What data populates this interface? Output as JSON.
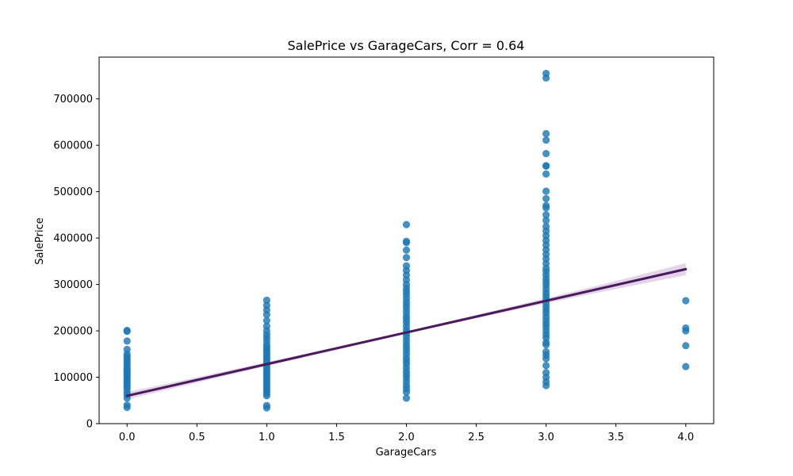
{
  "chart_data": {
    "type": "scatter",
    "title": "SalePrice vs GarageCars, Corr = 0.64",
    "xlabel": "GarageCars",
    "ylabel": "SalePrice",
    "xlim": [
      -0.2,
      4.2
    ],
    "ylim": [
      0,
      790000
    ],
    "xticks": [
      "0.0",
      "0.5",
      "1.0",
      "1.5",
      "2.0",
      "2.5",
      "3.0",
      "3.5",
      "4.0"
    ],
    "xtick_values": [
      0,
      0.5,
      1,
      1.5,
      2,
      2.5,
      3,
      3.5,
      4
    ],
    "yticks": [
      "0",
      "100000",
      "200000",
      "300000",
      "400000",
      "500000",
      "600000",
      "700000"
    ],
    "ytick_values": [
      0,
      100000,
      200000,
      300000,
      400000,
      500000,
      600000,
      700000
    ],
    "grid": false,
    "series": [
      {
        "color": "#1f77b4",
        "points": [
          {
            "x": 0,
            "y": 35000
          },
          {
            "x": 0,
            "y": 40000
          },
          {
            "x": 0,
            "y": 55000
          },
          {
            "x": 0,
            "y": 62000
          },
          {
            "x": 0,
            "y": 68000
          },
          {
            "x": 0,
            "y": 75000
          },
          {
            "x": 0,
            "y": 80000
          },
          {
            "x": 0,
            "y": 84000
          },
          {
            "x": 0,
            "y": 88000
          },
          {
            "x": 0,
            "y": 92000
          },
          {
            "x": 0,
            "y": 96000
          },
          {
            "x": 0,
            "y": 100000
          },
          {
            "x": 0,
            "y": 104000
          },
          {
            "x": 0,
            "y": 108000
          },
          {
            "x": 0,
            "y": 112000
          },
          {
            "x": 0,
            "y": 116000
          },
          {
            "x": 0,
            "y": 120000
          },
          {
            "x": 0,
            "y": 125000
          },
          {
            "x": 0,
            "y": 130000
          },
          {
            "x": 0,
            "y": 135000
          },
          {
            "x": 0,
            "y": 140000
          },
          {
            "x": 0,
            "y": 145000
          },
          {
            "x": 0,
            "y": 150000
          },
          {
            "x": 0,
            "y": 160000
          },
          {
            "x": 0,
            "y": 178000
          },
          {
            "x": 0,
            "y": 199000
          },
          {
            "x": 0,
            "y": 201000
          },
          {
            "x": 1,
            "y": 34000
          },
          {
            "x": 1,
            "y": 39000
          },
          {
            "x": 1,
            "y": 60000
          },
          {
            "x": 1,
            "y": 65000
          },
          {
            "x": 1,
            "y": 70000
          },
          {
            "x": 1,
            "y": 75000
          },
          {
            "x": 1,
            "y": 80000
          },
          {
            "x": 1,
            "y": 85000
          },
          {
            "x": 1,
            "y": 90000
          },
          {
            "x": 1,
            "y": 95000
          },
          {
            "x": 1,
            "y": 100000
          },
          {
            "x": 1,
            "y": 105000
          },
          {
            "x": 1,
            "y": 110000
          },
          {
            "x": 1,
            "y": 115000
          },
          {
            "x": 1,
            "y": 120000
          },
          {
            "x": 1,
            "y": 125000
          },
          {
            "x": 1,
            "y": 130000
          },
          {
            "x": 1,
            "y": 135000
          },
          {
            "x": 1,
            "y": 140000
          },
          {
            "x": 1,
            "y": 145000
          },
          {
            "x": 1,
            "y": 150000
          },
          {
            "x": 1,
            "y": 155000
          },
          {
            "x": 1,
            "y": 160000
          },
          {
            "x": 1,
            "y": 165000
          },
          {
            "x": 1,
            "y": 170000
          },
          {
            "x": 1,
            "y": 178000
          },
          {
            "x": 1,
            "y": 185000
          },
          {
            "x": 1,
            "y": 192000
          },
          {
            "x": 1,
            "y": 200000
          },
          {
            "x": 1,
            "y": 210000
          },
          {
            "x": 1,
            "y": 222000
          },
          {
            "x": 1,
            "y": 235000
          },
          {
            "x": 1,
            "y": 245000
          },
          {
            "x": 1,
            "y": 255000
          },
          {
            "x": 1,
            "y": 266000
          },
          {
            "x": 2,
            "y": 55000
          },
          {
            "x": 2,
            "y": 68000
          },
          {
            "x": 2,
            "y": 75000
          },
          {
            "x": 2,
            "y": 82000
          },
          {
            "x": 2,
            "y": 90000
          },
          {
            "x": 2,
            "y": 98000
          },
          {
            "x": 2,
            "y": 105000
          },
          {
            "x": 2,
            "y": 112000
          },
          {
            "x": 2,
            "y": 120000
          },
          {
            "x": 2,
            "y": 128000
          },
          {
            "x": 2,
            "y": 135000
          },
          {
            "x": 2,
            "y": 142000
          },
          {
            "x": 2,
            "y": 150000
          },
          {
            "x": 2,
            "y": 158000
          },
          {
            "x": 2,
            "y": 165000
          },
          {
            "x": 2,
            "y": 172000
          },
          {
            "x": 2,
            "y": 180000
          },
          {
            "x": 2,
            "y": 188000
          },
          {
            "x": 2,
            "y": 195000
          },
          {
            "x": 2,
            "y": 202000
          },
          {
            "x": 2,
            "y": 210000
          },
          {
            "x": 2,
            "y": 218000
          },
          {
            "x": 2,
            "y": 225000
          },
          {
            "x": 2,
            "y": 232000
          },
          {
            "x": 2,
            "y": 240000
          },
          {
            "x": 2,
            "y": 248000
          },
          {
            "x": 2,
            "y": 255000
          },
          {
            "x": 2,
            "y": 262000
          },
          {
            "x": 2,
            "y": 270000
          },
          {
            "x": 2,
            "y": 278000
          },
          {
            "x": 2,
            "y": 285000
          },
          {
            "x": 2,
            "y": 292000
          },
          {
            "x": 2,
            "y": 300000
          },
          {
            "x": 2,
            "y": 310000
          },
          {
            "x": 2,
            "y": 320000
          },
          {
            "x": 2,
            "y": 330000
          },
          {
            "x": 2,
            "y": 340000
          },
          {
            "x": 2,
            "y": 358000
          },
          {
            "x": 2,
            "y": 374000
          },
          {
            "x": 2,
            "y": 390000
          },
          {
            "x": 2,
            "y": 393000
          },
          {
            "x": 2,
            "y": 429000
          },
          {
            "x": 3,
            "y": 82000
          },
          {
            "x": 3,
            "y": 90000
          },
          {
            "x": 3,
            "y": 100000
          },
          {
            "x": 3,
            "y": 110000
          },
          {
            "x": 3,
            "y": 125000
          },
          {
            "x": 3,
            "y": 140000
          },
          {
            "x": 3,
            "y": 148000
          },
          {
            "x": 3,
            "y": 155000
          },
          {
            "x": 3,
            "y": 170000
          },
          {
            "x": 3,
            "y": 175000
          },
          {
            "x": 3,
            "y": 185000
          },
          {
            "x": 3,
            "y": 192000
          },
          {
            "x": 3,
            "y": 200000
          },
          {
            "x": 3,
            "y": 208000
          },
          {
            "x": 3,
            "y": 215000
          },
          {
            "x": 3,
            "y": 222000
          },
          {
            "x": 3,
            "y": 230000
          },
          {
            "x": 3,
            "y": 238000
          },
          {
            "x": 3,
            "y": 245000
          },
          {
            "x": 3,
            "y": 252000
          },
          {
            "x": 3,
            "y": 260000
          },
          {
            "x": 3,
            "y": 268000
          },
          {
            "x": 3,
            "y": 275000
          },
          {
            "x": 3,
            "y": 282000
          },
          {
            "x": 3,
            "y": 290000
          },
          {
            "x": 3,
            "y": 298000
          },
          {
            "x": 3,
            "y": 305000
          },
          {
            "x": 3,
            "y": 312000
          },
          {
            "x": 3,
            "y": 320000
          },
          {
            "x": 3,
            "y": 328000
          },
          {
            "x": 3,
            "y": 335000
          },
          {
            "x": 3,
            "y": 345000
          },
          {
            "x": 3,
            "y": 355000
          },
          {
            "x": 3,
            "y": 365000
          },
          {
            "x": 3,
            "y": 375000
          },
          {
            "x": 3,
            "y": 385000
          },
          {
            "x": 3,
            "y": 395000
          },
          {
            "x": 3,
            "y": 405000
          },
          {
            "x": 3,
            "y": 415000
          },
          {
            "x": 3,
            "y": 425000
          },
          {
            "x": 3,
            "y": 438000
          },
          {
            "x": 3,
            "y": 450000
          },
          {
            "x": 3,
            "y": 465000
          },
          {
            "x": 3,
            "y": 470000
          },
          {
            "x": 3,
            "y": 485000
          },
          {
            "x": 3,
            "y": 501000
          },
          {
            "x": 3,
            "y": 538000
          },
          {
            "x": 3,
            "y": 555000
          },
          {
            "x": 3,
            "y": 556000
          },
          {
            "x": 3,
            "y": 582000
          },
          {
            "x": 3,
            "y": 611000
          },
          {
            "x": 3,
            "y": 625000
          },
          {
            "x": 3,
            "y": 745000
          },
          {
            "x": 3,
            "y": 755000
          },
          {
            "x": 4,
            "y": 123000
          },
          {
            "x": 4,
            "y": 168000
          },
          {
            "x": 4,
            "y": 200000
          },
          {
            "x": 4,
            "y": 206000
          },
          {
            "x": 4,
            "y": 265000
          }
        ]
      }
    ],
    "regression": {
      "color": "#4a1a5c",
      "ci_color": "#d8c7e0",
      "start": {
        "x": 0,
        "y": 60000
      },
      "end": {
        "x": 4,
        "y": 333000
      },
      "ci_halfwidth_start": 8000,
      "ci_halfwidth_mid": 3000,
      "ci_halfwidth_end": 13000
    }
  }
}
